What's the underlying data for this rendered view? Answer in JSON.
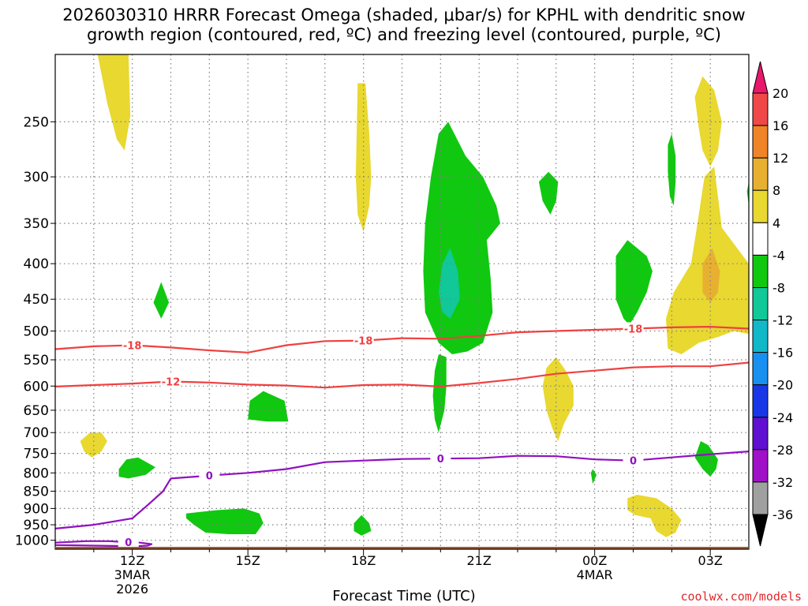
{
  "title": {
    "line1": "2026030310 HRRR Forecast Omega (shaded, μbar/s) for KPHL with dendritic snow",
    "line2": "growth region (contoured, red, ºC) and freezing level (contoured, purple, ºC)"
  },
  "chart_data": {
    "type": "heatmap",
    "title": "2026030310 HRRR Forecast Omega (shaded, μbar/s) for KPHL with dendritic snow growth region (contoured, red, ºC) and freezing level (contoured, purple, ºC)",
    "xlabel": "Forecast Time (UTC)",
    "ylabel": "",
    "xlim": [
      10,
      28
    ],
    "ylim": [
      1030,
      200
    ],
    "x_ticks": [
      {
        "value": 12,
        "label": "12Z",
        "sub1": "3MAR",
        "sub2": "2026"
      },
      {
        "value": 15,
        "label": "15Z",
        "sub1": "",
        "sub2": ""
      },
      {
        "value": 18,
        "label": "18Z",
        "sub1": "",
        "sub2": ""
      },
      {
        "value": 21,
        "label": "21Z",
        "sub1": "",
        "sub2": ""
      },
      {
        "value": 24,
        "label": "00Z",
        "sub1": "4MAR",
        "sub2": ""
      },
      {
        "value": 27,
        "label": "03Z",
        "sub1": "",
        "sub2": ""
      }
    ],
    "y_ticks": [
      250,
      300,
      350,
      400,
      450,
      500,
      550,
      600,
      650,
      700,
      750,
      800,
      850,
      900,
      950,
      1000
    ],
    "colorbar": {
      "labels": [
        "20",
        "16",
        "12",
        "8",
        "4",
        "-4",
        "-8",
        "-12",
        "-16",
        "-20",
        "-24",
        "-28",
        "-32",
        "-36"
      ],
      "colors": [
        "#e8186c",
        "#f04848",
        "#f08428",
        "#e8b030",
        "#e8d830",
        "#ffffff",
        "#10c810",
        "#10c898",
        "#10b8c8",
        "#1890f0",
        "#1838e8",
        "#6010d0",
        "#a010c8",
        "#a0a0a0",
        "#000000"
      ]
    },
    "omega_regions": [
      {
        "color": "#e8d830",
        "points": [
          [
            11.1,
            200
          ],
          [
            11.9,
            200
          ],
          [
            11.95,
            245
          ],
          [
            11.8,
            275
          ],
          [
            11.6,
            265
          ],
          [
            11.35,
            235
          ]
        ]
      },
      {
        "color": "#e8d830",
        "points": [
          [
            17.8,
            300
          ],
          [
            17.85,
            220
          ],
          [
            18.05,
            220
          ],
          [
            18.15,
            260
          ],
          [
            18.2,
            300
          ],
          [
            18.15,
            330
          ],
          [
            18.0,
            360
          ],
          [
            17.85,
            340
          ]
        ]
      },
      {
        "color": "#e8d830",
        "points": [
          [
            26.6,
            230
          ],
          [
            26.8,
            215
          ],
          [
            27.1,
            225
          ],
          [
            27.3,
            250
          ],
          [
            27.2,
            275
          ],
          [
            27.0,
            290
          ],
          [
            26.8,
            275
          ],
          [
            26.7,
            255
          ]
        ]
      },
      {
        "color": "#e8d830",
        "points": [
          [
            26.85,
            300
          ],
          [
            27.1,
            290
          ],
          [
            27.3,
            355
          ],
          [
            28,
            400
          ],
          [
            28,
            505
          ],
          [
            27.6,
            500
          ],
          [
            27.2,
            510
          ],
          [
            26.7,
            520
          ],
          [
            26.25,
            540
          ],
          [
            25.9,
            530
          ],
          [
            25.85,
            480
          ],
          [
            26.05,
            440
          ],
          [
            26.5,
            400
          ],
          [
            26.65,
            355
          ]
        ]
      },
      {
        "color": "#e8b030",
        "points": [
          [
            26.8,
            400
          ],
          [
            27.05,
            380
          ],
          [
            27.25,
            410
          ],
          [
            27.2,
            440
          ],
          [
            27.0,
            455
          ],
          [
            26.8,
            440
          ]
        ]
      },
      {
        "color": "#e8d830",
        "points": [
          [
            10.65,
            720
          ],
          [
            10.9,
            700
          ],
          [
            11.2,
            700
          ],
          [
            11.35,
            720
          ],
          [
            11.2,
            745
          ],
          [
            10.95,
            760
          ],
          [
            10.75,
            745
          ]
        ]
      },
      {
        "color": "#e8d830",
        "points": [
          [
            22.65,
            600
          ],
          [
            22.75,
            565
          ],
          [
            23.0,
            545
          ],
          [
            23.25,
            570
          ],
          [
            23.45,
            600
          ],
          [
            23.45,
            640
          ],
          [
            23.2,
            680
          ],
          [
            23.05,
            720
          ],
          [
            22.9,
            690
          ],
          [
            22.75,
            650
          ]
        ]
      },
      {
        "color": "#e8d830",
        "points": [
          [
            24.85,
            870
          ],
          [
            25.1,
            860
          ],
          [
            25.6,
            870
          ],
          [
            26.0,
            900
          ],
          [
            26.25,
            935
          ],
          [
            26.1,
            975
          ],
          [
            25.85,
            990
          ],
          [
            25.6,
            970
          ],
          [
            25.45,
            930
          ],
          [
            25.05,
            920
          ],
          [
            24.85,
            905
          ]
        ]
      },
      {
        "color": "#10c810",
        "points": [
          [
            19.6,
            350
          ],
          [
            19.75,
            300
          ],
          [
            19.95,
            260
          ],
          [
            20.2,
            250
          ],
          [
            20.65,
            280
          ],
          [
            21.1,
            300
          ],
          [
            21.45,
            330
          ],
          [
            21.55,
            350
          ],
          [
            21.2,
            370
          ],
          [
            21.3,
            420
          ],
          [
            21.35,
            470
          ],
          [
            21.1,
            520
          ],
          [
            20.7,
            535
          ],
          [
            20.3,
            540
          ],
          [
            19.95,
            520
          ],
          [
            19.6,
            470
          ],
          [
            19.55,
            410
          ]
        ]
      },
      {
        "color": "#10c898",
        "points": [
          [
            20.05,
            400
          ],
          [
            20.25,
            380
          ],
          [
            20.45,
            410
          ],
          [
            20.5,
            450
          ],
          [
            20.25,
            480
          ],
          [
            20.05,
            470
          ],
          [
            19.95,
            440
          ]
        ]
      },
      {
        "color": "#10c810",
        "points": [
          [
            22.55,
            305
          ],
          [
            22.8,
            295
          ],
          [
            23.05,
            305
          ],
          [
            23.0,
            325
          ],
          [
            22.85,
            340
          ],
          [
            22.65,
            325
          ]
        ]
      },
      {
        "color": "#10c810",
        "points": [
          [
            25.9,
            270
          ],
          [
            26.0,
            260
          ],
          [
            26.1,
            280
          ],
          [
            26.1,
            305
          ],
          [
            26.05,
            330
          ],
          [
            25.95,
            320
          ],
          [
            25.9,
            295
          ]
        ]
      },
      {
        "color": "#10c810",
        "points": [
          [
            24.55,
            390
          ],
          [
            24.85,
            370
          ],
          [
            25.35,
            390
          ],
          [
            25.5,
            410
          ],
          [
            25.35,
            440
          ],
          [
            25.1,
            470
          ],
          [
            24.9,
            490
          ],
          [
            24.75,
            480
          ],
          [
            24.55,
            450
          ]
        ]
      },
      {
        "color": "#10c810",
        "points": [
          [
            27.95,
            315
          ],
          [
            28,
            305
          ],
          [
            28,
            330
          ]
        ]
      },
      {
        "color": "#10c810",
        "points": [
          [
            12.55,
            455
          ],
          [
            12.75,
            425
          ],
          [
            12.95,
            455
          ],
          [
            12.75,
            480
          ]
        ]
      },
      {
        "color": "#10c810",
        "points": [
          [
            15.05,
            630
          ],
          [
            15.4,
            610
          ],
          [
            15.95,
            630
          ],
          [
            16.05,
            675
          ],
          [
            15.5,
            675
          ],
          [
            15.0,
            670
          ]
        ]
      },
      {
        "color": "#10c810",
        "points": [
          [
            19.85,
            570
          ],
          [
            19.95,
            540
          ],
          [
            20.15,
            545
          ],
          [
            20.15,
            600
          ],
          [
            20.1,
            650
          ],
          [
            19.95,
            700
          ],
          [
            19.85,
            670
          ],
          [
            19.8,
            620
          ]
        ]
      },
      {
        "color": "#10c810",
        "points": [
          [
            11.65,
            790
          ],
          [
            11.85,
            765
          ],
          [
            12.15,
            760
          ],
          [
            12.6,
            785
          ],
          [
            12.35,
            805
          ],
          [
            11.9,
            815
          ],
          [
            11.65,
            810
          ]
        ]
      },
      {
        "color": "#10c810",
        "points": [
          [
            26.6,
            760
          ],
          [
            26.75,
            720
          ],
          [
            26.95,
            730
          ],
          [
            27.2,
            765
          ],
          [
            27.15,
            790
          ],
          [
            27.0,
            810
          ],
          [
            26.8,
            790
          ]
        ]
      },
      {
        "color": "#10c810",
        "points": [
          [
            23.9,
            800
          ],
          [
            23.95,
            790
          ],
          [
            24.05,
            805
          ],
          [
            23.95,
            830
          ]
        ]
      },
      {
        "color": "#10c810",
        "points": [
          [
            13.4,
            915
          ],
          [
            14.2,
            905
          ],
          [
            14.9,
            900
          ],
          [
            15.3,
            915
          ],
          [
            15.4,
            945
          ],
          [
            15.2,
            980
          ],
          [
            14.5,
            980
          ],
          [
            13.9,
            975
          ],
          [
            13.6,
            950
          ],
          [
            13.4,
            930
          ]
        ]
      },
      {
        "color": "#10c810",
        "points": [
          [
            17.75,
            945
          ],
          [
            17.95,
            920
          ],
          [
            18.15,
            945
          ],
          [
            18.2,
            970
          ],
          [
            17.95,
            985
          ],
          [
            17.75,
            970
          ]
        ]
      }
    ],
    "contours": [
      {
        "name": "dgz-minus18",
        "color": "#f04040",
        "label": "-18",
        "label_x": [
          12,
          18,
          25
        ],
        "x": [
          10,
          11,
          12,
          13,
          14,
          15,
          16,
          17,
          18,
          19,
          20,
          21,
          22,
          23,
          24,
          25,
          26,
          27,
          28
        ],
        "y": [
          531,
          526,
          524,
          528,
          533,
          537,
          524,
          517,
          516,
          512,
          513,
          508,
          502,
          500,
          498,
          496,
          494,
          493,
          496
        ]
      },
      {
        "name": "dgz-minus12",
        "color": "#f04040",
        "label": "-12",
        "label_x": [
          13
        ],
        "x": [
          10,
          11,
          12,
          13,
          14,
          15,
          16,
          17,
          18,
          19,
          20,
          21,
          22,
          23,
          24,
          25,
          26,
          27,
          28
        ],
        "y": [
          601,
          598,
          595,
          591,
          593,
          597,
          599,
          603,
          598,
          597,
          601,
          594,
          586,
          576,
          570,
          564,
          562,
          562,
          555
        ]
      },
      {
        "name": "freezing-level",
        "color": "#9010c0",
        "label": "0",
        "label_x": [
          14,
          20,
          25
        ],
        "x": [
          10,
          11,
          12,
          12.4,
          12.8,
          13,
          14,
          15,
          16,
          17,
          18,
          19,
          20,
          21,
          22,
          23,
          24,
          25,
          26,
          27,
          28
        ],
        "y": [
          962,
          950,
          930,
          890,
          850,
          815,
          807,
          800,
          790,
          772,
          768,
          764,
          763,
          762,
          756,
          757,
          765,
          768,
          760,
          752,
          745
        ]
      },
      {
        "name": "freezing-level-sfc",
        "color": "#9010c0",
        "label": "0",
        "label_x": [
          11.9
        ],
        "x": [
          10,
          10.8,
          11.4,
          11.8,
          12.2,
          12.5,
          12.4,
          12.0,
          11.5,
          11.0,
          10.5,
          10.0
        ],
        "y": [
          1008,
          1003,
          1003,
          1006,
          1008,
          1013,
          1018,
          1020,
          1019,
          1018,
          1017,
          1016
        ]
      }
    ],
    "surface": {
      "color": "#a85a30",
      "pressure": 1022
    }
  },
  "xaxis": {
    "title": "Forecast Time (UTC)"
  },
  "credit": "coolwx.com/models"
}
